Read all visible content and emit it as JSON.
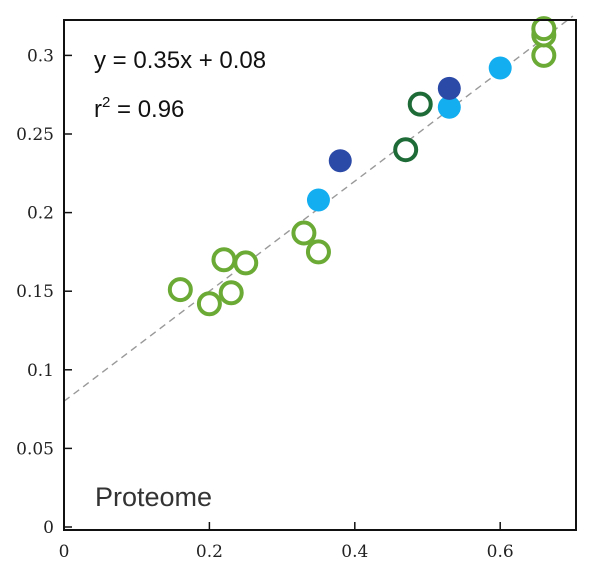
{
  "chart_data": {
    "type": "scatter",
    "title": "",
    "xlabel": "",
    "ylabel": "",
    "xlim": [
      0,
      0.7
    ],
    "ylim": [
      0,
      0.32
    ],
    "x_ticks": [
      "0",
      "0.2",
      "0.4",
      "0.6"
    ],
    "x_tick_values": [
      0,
      0.2,
      0.4,
      0.6
    ],
    "y_ticks": [
      "0",
      "0.05",
      "0.1",
      "0.15",
      "0.2",
      "0.25",
      "0.3"
    ],
    "y_tick_values": [
      0,
      0.05,
      0.1,
      0.15,
      0.2,
      0.25,
      0.3
    ],
    "grid": false,
    "annotations": {
      "equation": "y = 0.35x + 0.08",
      "r2_symbol": "r",
      "r2_superscript": "2",
      "r2_value": " = 0.96",
      "subset": "Proteome"
    },
    "fit_line": {
      "slope": 0.35,
      "intercept": 0.08,
      "style": "dashed",
      "color": "#999999"
    },
    "series": [
      {
        "marker": "open-circle",
        "color": "#6aaa35",
        "points": [
          {
            "x": 0.16,
            "y": 0.151
          },
          {
            "x": 0.2,
            "y": 0.142
          },
          {
            "x": 0.22,
            "y": 0.17
          },
          {
            "x": 0.23,
            "y": 0.149
          },
          {
            "x": 0.25,
            "y": 0.168
          },
          {
            "x": 0.33,
            "y": 0.187
          },
          {
            "x": 0.35,
            "y": 0.175
          },
          {
            "x": 0.66,
            "y": 0.3
          },
          {
            "x": 0.66,
            "y": 0.313
          },
          {
            "x": 0.66,
            "y": 0.317
          }
        ]
      },
      {
        "marker": "open-circle",
        "color": "#1e6b38",
        "points": [
          {
            "x": 0.47,
            "y": 0.24
          },
          {
            "x": 0.49,
            "y": 0.269
          }
        ]
      },
      {
        "marker": "filled-circle",
        "color": "#12aef0",
        "points": [
          {
            "x": 0.35,
            "y": 0.208
          },
          {
            "x": 0.53,
            "y": 0.267
          },
          {
            "x": 0.6,
            "y": 0.292
          }
        ]
      },
      {
        "marker": "filled-circle",
        "color": "#2b49a6",
        "points": [
          {
            "x": 0.38,
            "y": 0.233
          },
          {
            "x": 0.53,
            "y": 0.279
          }
        ]
      }
    ]
  }
}
